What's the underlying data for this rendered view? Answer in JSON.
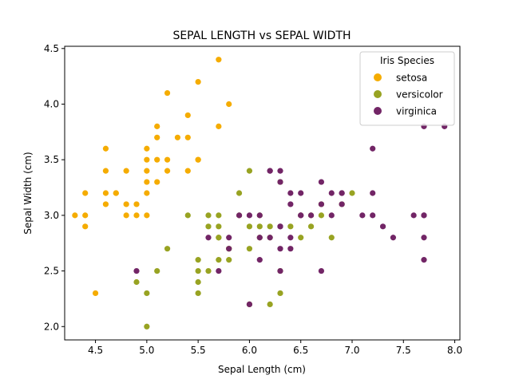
{
  "chart_data": {
    "type": "scatter",
    "title": "SEPAL LENGTH vs SEPAL WIDTH",
    "xlabel": "Sepal Length (cm)",
    "ylabel": "Sepal Width (cm)",
    "xlim": [
      4.2,
      8.05
    ],
    "ylim": [
      1.88,
      4.52
    ],
    "xticks": [
      "4.5",
      "5.0",
      "5.5",
      "6.0",
      "6.5",
      "7.0",
      "7.5",
      "8.0"
    ],
    "yticks": [
      "2.0",
      "2.5",
      "3.0",
      "3.5",
      "4.0",
      "4.5"
    ],
    "grid": false,
    "legend": {
      "title": "Iris Species",
      "placement": "top-right"
    },
    "series": [
      {
        "name": "setosa",
        "color": "#f5ac00",
        "points": [
          [
            5.1,
            3.5
          ],
          [
            4.9,
            3.0
          ],
          [
            4.7,
            3.2
          ],
          [
            4.6,
            3.1
          ],
          [
            5.0,
            3.6
          ],
          [
            5.4,
            3.9
          ],
          [
            4.6,
            3.4
          ],
          [
            5.0,
            3.4
          ],
          [
            4.4,
            2.9
          ],
          [
            4.9,
            3.1
          ],
          [
            5.4,
            3.7
          ],
          [
            4.8,
            3.4
          ],
          [
            4.8,
            3.0
          ],
          [
            4.3,
            3.0
          ],
          [
            5.8,
            4.0
          ],
          [
            5.7,
            4.4
          ],
          [
            5.1,
            3.8
          ],
          [
            5.7,
            3.8
          ],
          [
            5.2,
            3.4
          ],
          [
            5.4,
            3.4
          ],
          [
            4.6,
            3.6
          ],
          [
            5.1,
            3.3
          ],
          [
            5.0,
            3.0
          ],
          [
            5.2,
            3.5
          ],
          [
            4.7,
            3.2
          ],
          [
            5.2,
            4.1
          ],
          [
            5.5,
            4.2
          ],
          [
            5.5,
            3.5
          ],
          [
            4.4,
            3.0
          ],
          [
            4.5,
            2.3
          ],
          [
            4.4,
            3.2
          ],
          [
            5.0,
            3.5
          ],
          [
            4.8,
            3.1
          ],
          [
            5.1,
            3.7
          ],
          [
            5.3,
            3.7
          ],
          [
            5.0,
            3.3
          ],
          [
            4.6,
            3.2
          ],
          [
            5.5,
            3.5
          ],
          [
            5.0,
            3.2
          ]
        ]
      },
      {
        "name": "versicolor",
        "color": "#98a322",
        "points": [
          [
            7.0,
            3.2
          ],
          [
            6.9,
            3.1
          ],
          [
            5.5,
            2.3
          ],
          [
            6.5,
            2.8
          ],
          [
            5.7,
            2.8
          ],
          [
            6.3,
            3.3
          ],
          [
            4.9,
            2.4
          ],
          [
            6.6,
            2.9
          ],
          [
            5.2,
            2.7
          ],
          [
            5.0,
            2.0
          ],
          [
            5.9,
            3.0
          ],
          [
            6.0,
            2.2
          ],
          [
            6.1,
            2.9
          ],
          [
            5.6,
            2.9
          ],
          [
            6.7,
            3.1
          ],
          [
            5.6,
            3.0
          ],
          [
            5.8,
            2.7
          ],
          [
            6.2,
            2.2
          ],
          [
            5.6,
            2.5
          ],
          [
            5.9,
            3.2
          ],
          [
            6.1,
            2.8
          ],
          [
            6.3,
            2.5
          ],
          [
            6.4,
            2.9
          ],
          [
            6.6,
            3.0
          ],
          [
            6.8,
            2.8
          ],
          [
            6.7,
            3.0
          ],
          [
            6.0,
            2.9
          ],
          [
            5.7,
            2.6
          ],
          [
            5.5,
            2.4
          ],
          [
            5.8,
            2.7
          ],
          [
            6.0,
            2.7
          ],
          [
            5.4,
            3.0
          ],
          [
            6.0,
            3.4
          ],
          [
            6.3,
            2.3
          ],
          [
            5.5,
            2.5
          ],
          [
            5.5,
            2.6
          ],
          [
            6.1,
            3.0
          ],
          [
            5.8,
            2.6
          ],
          [
            5.0,
            2.3
          ],
          [
            5.7,
            3.0
          ],
          [
            5.7,
            2.9
          ],
          [
            6.2,
            2.9
          ],
          [
            5.1,
            2.5
          ],
          [
            5.7,
            2.8
          ],
          [
            6.5,
            3.0
          ],
          [
            6.2,
            2.8
          ]
        ]
      },
      {
        "name": "virginica",
        "color": "#722566",
        "points": [
          [
            6.3,
            3.3
          ],
          [
            5.8,
            2.7
          ],
          [
            7.1,
            3.0
          ],
          [
            6.3,
            2.9
          ],
          [
            6.5,
            3.0
          ],
          [
            7.6,
            3.0
          ],
          [
            4.9,
            2.5
          ],
          [
            7.3,
            2.9
          ],
          [
            6.7,
            2.5
          ],
          [
            7.2,
            3.6
          ],
          [
            6.5,
            3.2
          ],
          [
            6.4,
            2.7
          ],
          [
            6.8,
            3.0
          ],
          [
            5.7,
            2.5
          ],
          [
            5.8,
            2.8
          ],
          [
            6.4,
            3.2
          ],
          [
            7.7,
            3.8
          ],
          [
            7.7,
            2.6
          ],
          [
            6.0,
            2.2
          ],
          [
            6.9,
            3.2
          ],
          [
            5.6,
            2.8
          ],
          [
            7.7,
            2.8
          ],
          [
            6.3,
            2.7
          ],
          [
            6.7,
            3.3
          ],
          [
            7.2,
            3.2
          ],
          [
            6.2,
            2.8
          ],
          [
            6.1,
            3.0
          ],
          [
            7.2,
            3.0
          ],
          [
            7.4,
            2.8
          ],
          [
            7.9,
            3.8
          ],
          [
            6.1,
            2.6
          ],
          [
            7.7,
            3.0
          ],
          [
            6.3,
            3.4
          ],
          [
            6.4,
            3.1
          ],
          [
            6.0,
            3.0
          ],
          [
            6.9,
            3.1
          ],
          [
            6.7,
            3.1
          ],
          [
            6.8,
            3.2
          ],
          [
            6.2,
            3.4
          ],
          [
            5.9,
            3.0
          ],
          [
            6.5,
            3.0
          ],
          [
            6.3,
            2.5
          ],
          [
            6.4,
            2.8
          ],
          [
            6.6,
            3.0
          ],
          [
            6.1,
            2.8
          ],
          [
            6.9,
            3.2
          ],
          [
            6.2,
            3.4
          ],
          [
            7.7,
            3.0
          ],
          [
            6.3,
            2.9
          ]
        ]
      }
    ]
  }
}
